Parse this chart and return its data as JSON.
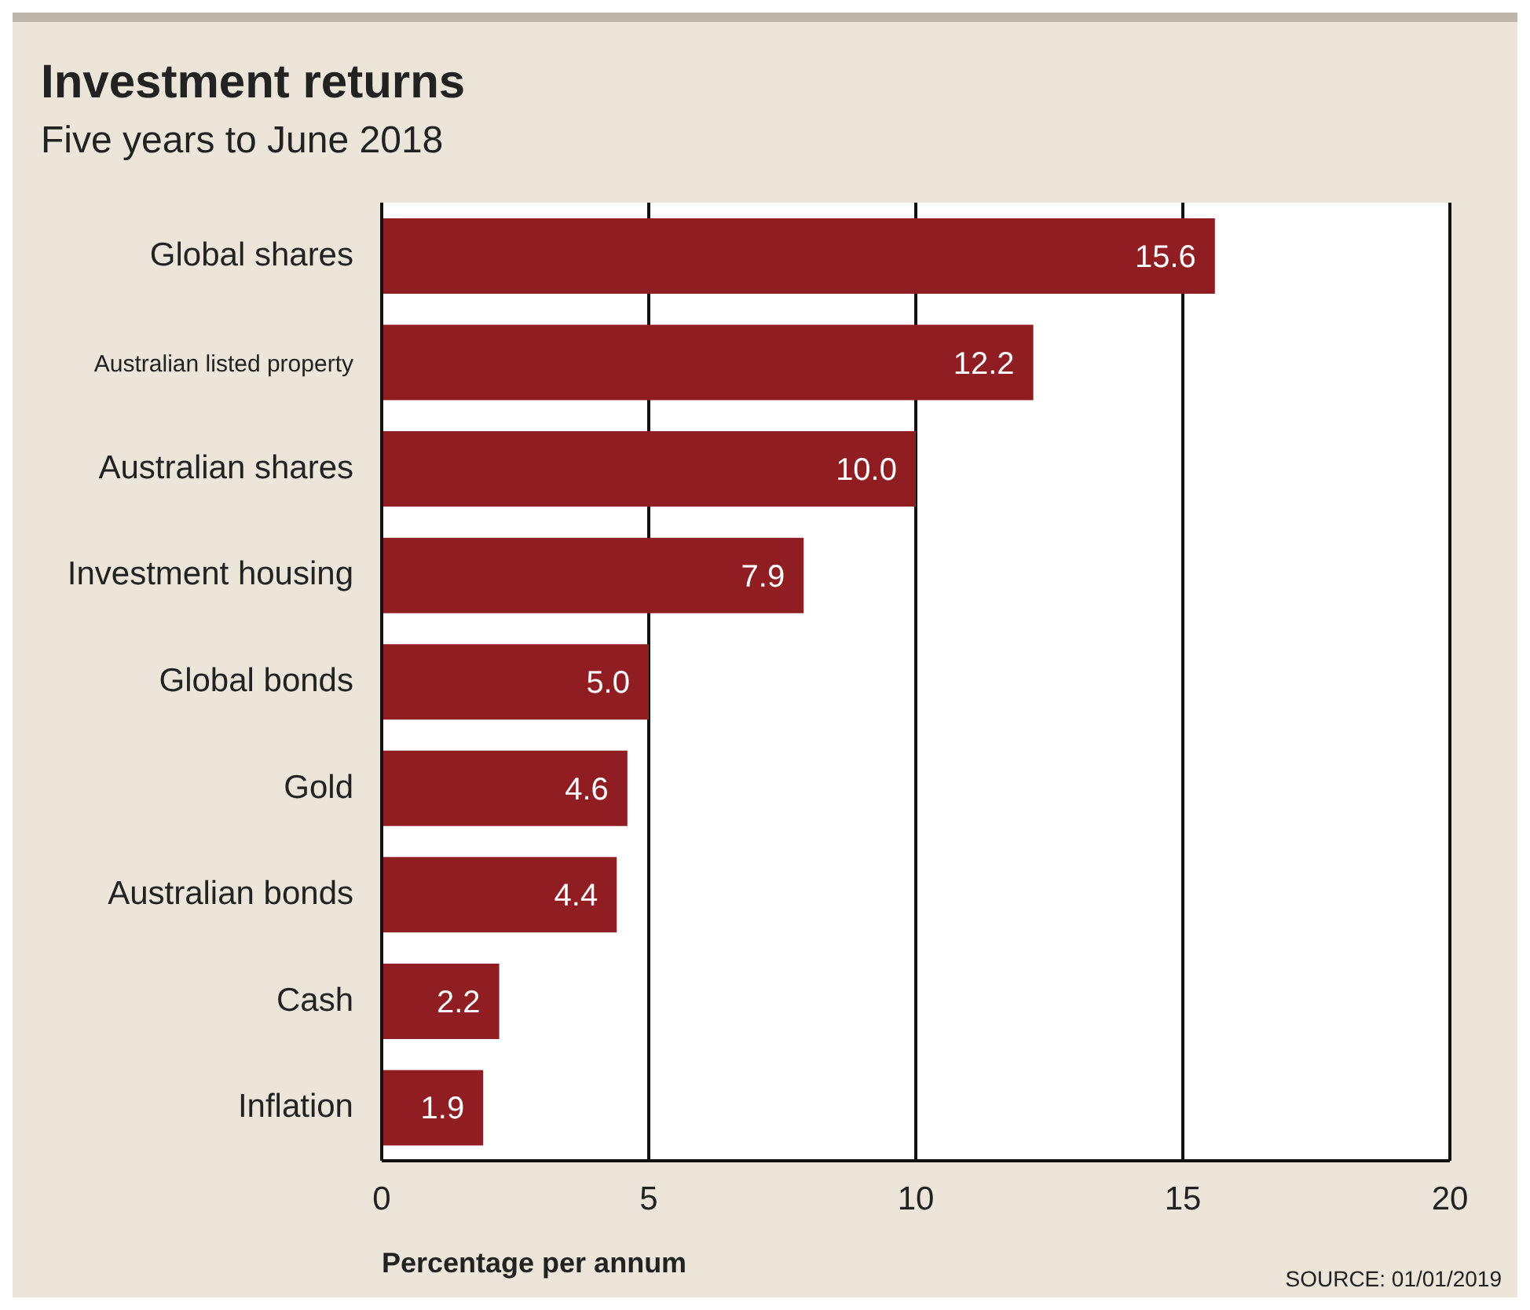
{
  "chart_data": {
    "type": "bar",
    "orientation": "horizontal",
    "title": "Investment returns",
    "subtitle": "Five years to June 2018",
    "categories": [
      "Global shares",
      "Australian listed property",
      "Australian shares",
      "Investment housing",
      "Global bonds",
      "Gold",
      "Australian bonds",
      "Cash",
      "Inflation"
    ],
    "values": [
      15.6,
      12.2,
      10.0,
      7.9,
      5.0,
      4.6,
      4.4,
      2.2,
      1.9
    ],
    "value_labels": [
      "15.6",
      "12.2",
      "10.0",
      "7.9",
      "5.0",
      "4.6",
      "4.4",
      "2.2",
      "1.9"
    ],
    "color": "#8f1d21",
    "xlim": [
      0,
      20
    ],
    "xticks": [
      0,
      5,
      10,
      15,
      20
    ],
    "grid": "x",
    "xlabel": "Percentage per annum",
    "annotations": [
      "SOURCE: 01/01/2019"
    ]
  }
}
